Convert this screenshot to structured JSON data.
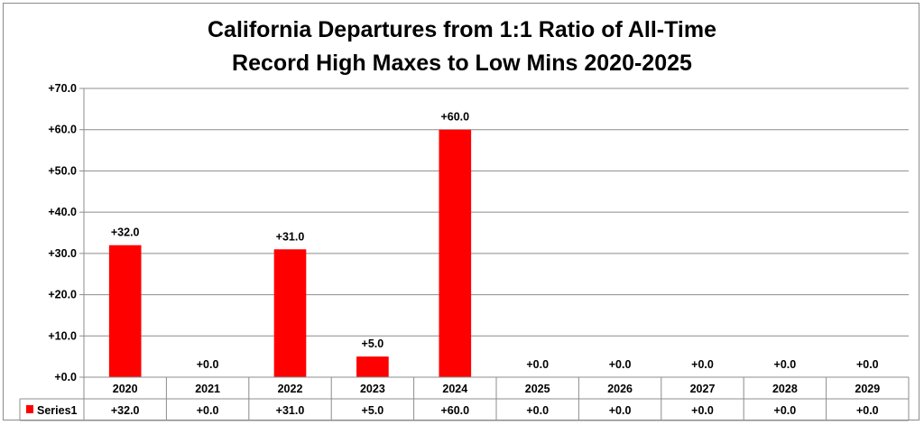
{
  "chart_data": {
    "type": "bar",
    "title_lines": [
      "California Departures from 1:1 Ratio of All-Time",
      "Record High Maxes to Low Mins 2020-2025"
    ],
    "categories": [
      "2020",
      "2021",
      "2022",
      "2023",
      "2024",
      "2025",
      "2026",
      "2027",
      "2028",
      "2029"
    ],
    "series": [
      {
        "name": "Series1",
        "values": [
          32,
          0,
          31,
          5,
          60,
          0,
          0,
          0,
          0,
          0
        ],
        "labels": [
          "+32.0",
          "+0.0",
          "+31.0",
          "+5.0",
          "+60.0",
          "+0.0",
          "+0.0",
          "+0.0",
          "+0.0",
          "+0.0"
        ],
        "color": "#ff0000"
      }
    ],
    "ylim": [
      0,
      70
    ],
    "yticks": [
      0,
      10,
      20,
      30,
      40,
      50,
      60,
      70
    ],
    "ytick_labels": [
      "+0.0",
      "+10.0",
      "+20.0",
      "+30.0",
      "+40.0",
      "+50.0",
      "+60.0",
      "+70.0"
    ],
    "grid": true,
    "legend": "data-table"
  }
}
